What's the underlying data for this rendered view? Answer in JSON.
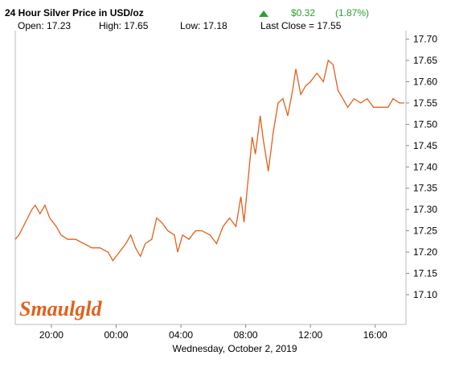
{
  "chart_data": {
    "type": "line",
    "title": "24 Hour Silver Price in USD/oz",
    "change": "$0.32",
    "change_percent": "(1.87%)",
    "stats": [
      "Open: 17.23",
      "High: 17.65",
      "Low: 17.18",
      "Last Close = 17.55"
    ],
    "xlabel": "Wednesday, October  2, 2019",
    "logo": "Smaulgld",
    "x": [
      17.77,
      18.0,
      18.4,
      18.8,
      19.0,
      19.3,
      19.6,
      19.9,
      20.3,
      20.6,
      21.0,
      21.5,
      22.0,
      22.5,
      23.0,
      23.5,
      23.8,
      24.2,
      24.6,
      24.9,
      25.2,
      25.5,
      25.8,
      26.2,
      26.5,
      26.8,
      27.2,
      27.6,
      27.8,
      28.1,
      28.5,
      28.9,
      29.3,
      29.8,
      30.2,
      30.6,
      31.0,
      31.4,
      31.7,
      31.9,
      32.1,
      32.4,
      32.6,
      32.9,
      33.1,
      33.4,
      33.7,
      34.0,
      34.3,
      34.6,
      34.9,
      35.1,
      35.4,
      35.7,
      36.0,
      36.4,
      36.8,
      37.1,
      37.4,
      37.7,
      38.0,
      38.3,
      38.7,
      39.1,
      39.5,
      39.9,
      40.3,
      40.8,
      41.1,
      41.5,
      41.8
    ],
    "series": [
      {
        "name": "Silver",
        "color": "#e2601c",
        "values": [
          17.23,
          17.24,
          17.27,
          17.3,
          17.31,
          17.29,
          17.31,
          17.28,
          17.26,
          17.24,
          17.23,
          17.23,
          17.22,
          17.21,
          17.21,
          17.2,
          17.18,
          17.2,
          17.22,
          17.24,
          17.21,
          17.19,
          17.22,
          17.23,
          17.28,
          17.27,
          17.25,
          17.24,
          17.2,
          17.24,
          17.23,
          17.25,
          17.25,
          17.24,
          17.22,
          17.26,
          17.28,
          17.26,
          17.33,
          17.27,
          17.35,
          17.47,
          17.43,
          17.52,
          17.46,
          17.39,
          17.48,
          17.55,
          17.56,
          17.52,
          17.58,
          17.63,
          17.57,
          17.59,
          17.6,
          17.62,
          17.6,
          17.65,
          17.64,
          17.58,
          17.56,
          17.54,
          17.56,
          17.55,
          17.56,
          17.54,
          17.54,
          17.54,
          17.56,
          17.55,
          17.55
        ]
      }
    ],
    "xlim": [
      17.77,
      41.9
    ],
    "ylim": [
      17.03,
      17.72
    ],
    "xticks": [
      {
        "value": 20,
        "label": "20:00"
      },
      {
        "value": 24,
        "label": "00:00"
      },
      {
        "value": 28,
        "label": "04:00"
      },
      {
        "value": 32,
        "label": "08:00"
      },
      {
        "value": 36,
        "label": "12:00"
      },
      {
        "value": 40,
        "label": "16:00"
      }
    ],
    "yticks": [
      {
        "value": 17.1,
        "label": "17.10"
      },
      {
        "value": 17.15,
        "label": "17.15"
      },
      {
        "value": 17.2,
        "label": "17.20"
      },
      {
        "value": 17.25,
        "label": "17.25"
      },
      {
        "value": 17.3,
        "label": "17.30"
      },
      {
        "value": 17.35,
        "label": "17.35"
      },
      {
        "value": 17.4,
        "label": "17.40"
      },
      {
        "value": 17.45,
        "label": "17.45"
      },
      {
        "value": 17.5,
        "label": "17.50"
      },
      {
        "value": 17.55,
        "label": "17.55"
      },
      {
        "value": 17.6,
        "label": "17.60"
      },
      {
        "value": 17.65,
        "label": "17.65"
      },
      {
        "value": 17.7,
        "label": "17.70"
      }
    ],
    "up_color": "#2ca02c"
  }
}
